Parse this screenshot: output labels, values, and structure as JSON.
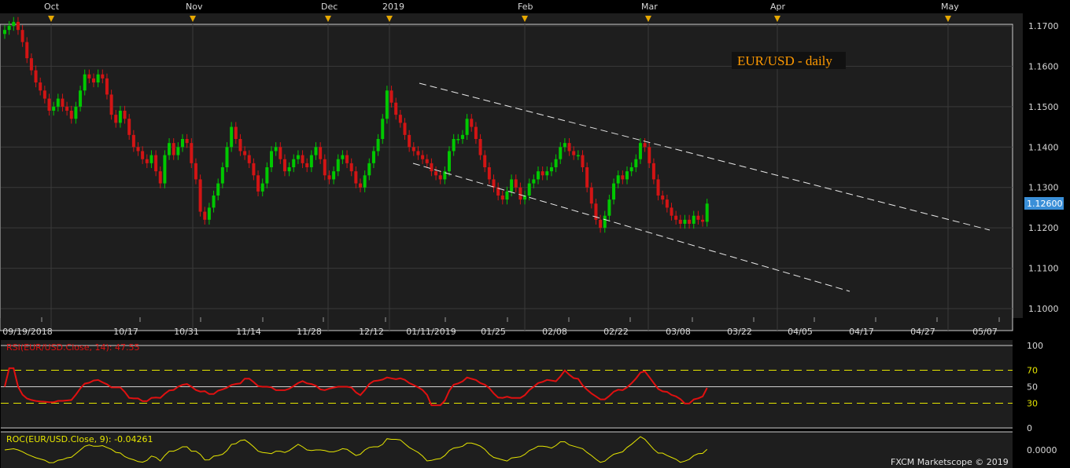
{
  "chart_data": [
    {
      "type": "candlestick",
      "title": "EUR/USD - daily",
      "months": [
        "Oct",
        "Nov",
        "Dec",
        "2019",
        "Feb",
        "Mar",
        "Apr",
        "May"
      ],
      "date_labels": [
        "09/19/2018",
        "10/17",
        "10/31",
        "11/14",
        "11/28",
        "12/12",
        "01/11/2019",
        "01/25",
        "02/08",
        "02/22",
        "03/08",
        "03/22",
        "04/05",
        "04/17",
        "04/27",
        "05/07"
      ],
      "y_ticks": [
        "1.1700",
        "1.1600",
        "1.1500",
        "1.1400",
        "1.1300",
        "1.1200",
        "1.1100",
        "1.1000"
      ],
      "ylim": [
        1.1,
        1.17
      ],
      "last_price": "1.12600",
      "close": [
        1.169,
        1.17,
        1.171,
        1.169,
        1.166,
        1.162,
        1.159,
        1.156,
        1.154,
        1.152,
        1.149,
        1.15,
        1.152,
        1.15,
        1.149,
        1.147,
        1.15,
        1.154,
        1.158,
        1.157,
        1.156,
        1.158,
        1.157,
        1.153,
        1.148,
        1.146,
        1.149,
        1.147,
        1.143,
        1.14,
        1.139,
        1.137,
        1.136,
        1.138,
        1.134,
        1.131,
        1.138,
        1.141,
        1.138,
        1.14,
        1.142,
        1.141,
        1.136,
        1.132,
        1.124,
        1.122,
        1.125,
        1.128,
        1.131,
        1.135,
        1.14,
        1.145,
        1.142,
        1.139,
        1.138,
        1.136,
        1.133,
        1.129,
        1.131,
        1.135,
        1.139,
        1.14,
        1.137,
        1.134,
        1.135,
        1.137,
        1.138,
        1.136,
        1.135,
        1.138,
        1.14,
        1.137,
        1.133,
        1.132,
        1.134,
        1.137,
        1.138,
        1.136,
        1.134,
        1.131,
        1.13,
        1.133,
        1.136,
        1.139,
        1.142,
        1.147,
        1.154,
        1.151,
        1.148,
        1.146,
        1.143,
        1.14,
        1.139,
        1.138,
        1.137,
        1.136,
        1.134,
        1.133,
        1.132,
        1.134,
        1.139,
        1.142,
        1.142,
        1.143,
        1.147,
        1.145,
        1.142,
        1.138,
        1.135,
        1.132,
        1.13,
        1.128,
        1.127,
        1.129,
        1.132,
        1.13,
        1.127,
        1.128,
        1.131,
        1.132,
        1.134,
        1.133,
        1.134,
        1.135,
        1.137,
        1.14,
        1.141,
        1.139,
        1.138,
        1.138,
        1.135,
        1.13,
        1.126,
        1.122,
        1.12,
        1.123,
        1.127,
        1.131,
        1.133,
        1.132,
        1.134,
        1.135,
        1.137,
        1.141,
        1.14,
        1.136,
        1.132,
        1.128,
        1.127,
        1.125,
        1.123,
        1.122,
        1.121,
        1.122,
        1.121,
        1.123,
        1.122,
        1.1215,
        1.126
      ],
      "rsi": {
        "label": "RSI(EUR/USD.Close, 14): 47.55",
        "levels": [
          70,
          50,
          30
        ],
        "scale": [
          100,
          70,
          50,
          30,
          0
        ]
      },
      "roc": {
        "label": "ROC(EUR/USD.Close, 9): -0.04261",
        "scale": [
          "0.0000"
        ]
      },
      "credit": "FXCM Marketscope © 2019",
      "colors": {
        "bull": "#00c800",
        "bear": "#d21414",
        "rsi": "#e01010",
        "roc": "#e6e600",
        "title": "#ff9900",
        "price_badge": "#3a8fd8"
      }
    }
  ]
}
